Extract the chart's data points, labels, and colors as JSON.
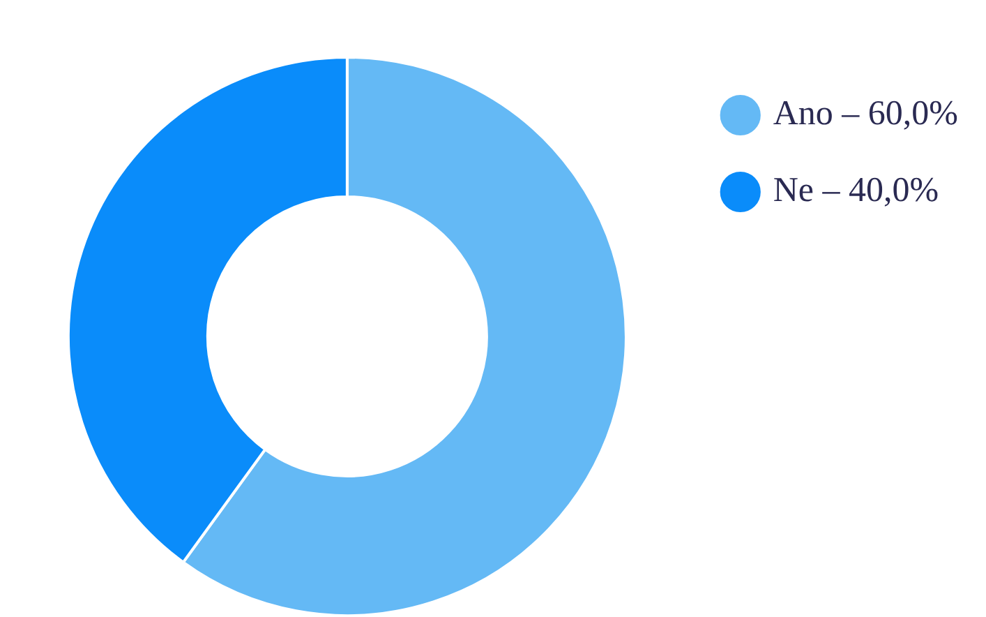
{
  "chart_data": {
    "type": "donut",
    "categories": [
      "Ano – 60,0%",
      "Ne – 40,0%"
    ],
    "values": [
      60,
      40
    ],
    "colors": [
      "#64b9f5",
      "#0a8cfa"
    ],
    "legend": "top right"
  }
}
